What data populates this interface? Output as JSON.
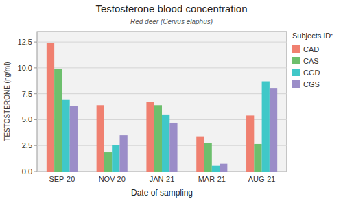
{
  "chart_data": {
    "type": "bar",
    "title": "Testosterone blood concentration",
    "subtitle": "Red deer (Cervus elaphus)",
    "x_label": "Date of sampling",
    "y_label": "TESTOSTERONE (ng/ml)",
    "categories": [
      "SEP-20",
      "NOV-20",
      "JAN-21",
      "MAR-21",
      "AUG-21"
    ],
    "series": [
      {
        "name": "CAD",
        "color": "#F08070",
        "values": [
          12.4,
          6.4,
          6.7,
          3.4,
          5.4
        ]
      },
      {
        "name": "CAS",
        "color": "#6DBF6D",
        "values": [
          9.9,
          1.85,
          6.4,
          2.75,
          2.65
        ]
      },
      {
        "name": "CGD",
        "color": "#40C8C8",
        "values": [
          6.9,
          2.55,
          5.5,
          0.55,
          8.7
        ]
      },
      {
        "name": "CGS",
        "color": "#9B8DC8",
        "values": [
          6.3,
          3.5,
          4.7,
          0.75,
          8.0
        ]
      }
    ],
    "ylim": [
      0,
      13.5
    ],
    "yticks": [
      {
        "value": 0,
        "label": "0.0"
      },
      2.5,
      {
        "value": 5,
        "label": "5.0"
      },
      7.5,
      {
        "value": 10,
        "label": "10.0"
      },
      12.5
    ],
    "legend_title": "Subjects ID:",
    "legend": "upper right",
    "grid": true
  }
}
